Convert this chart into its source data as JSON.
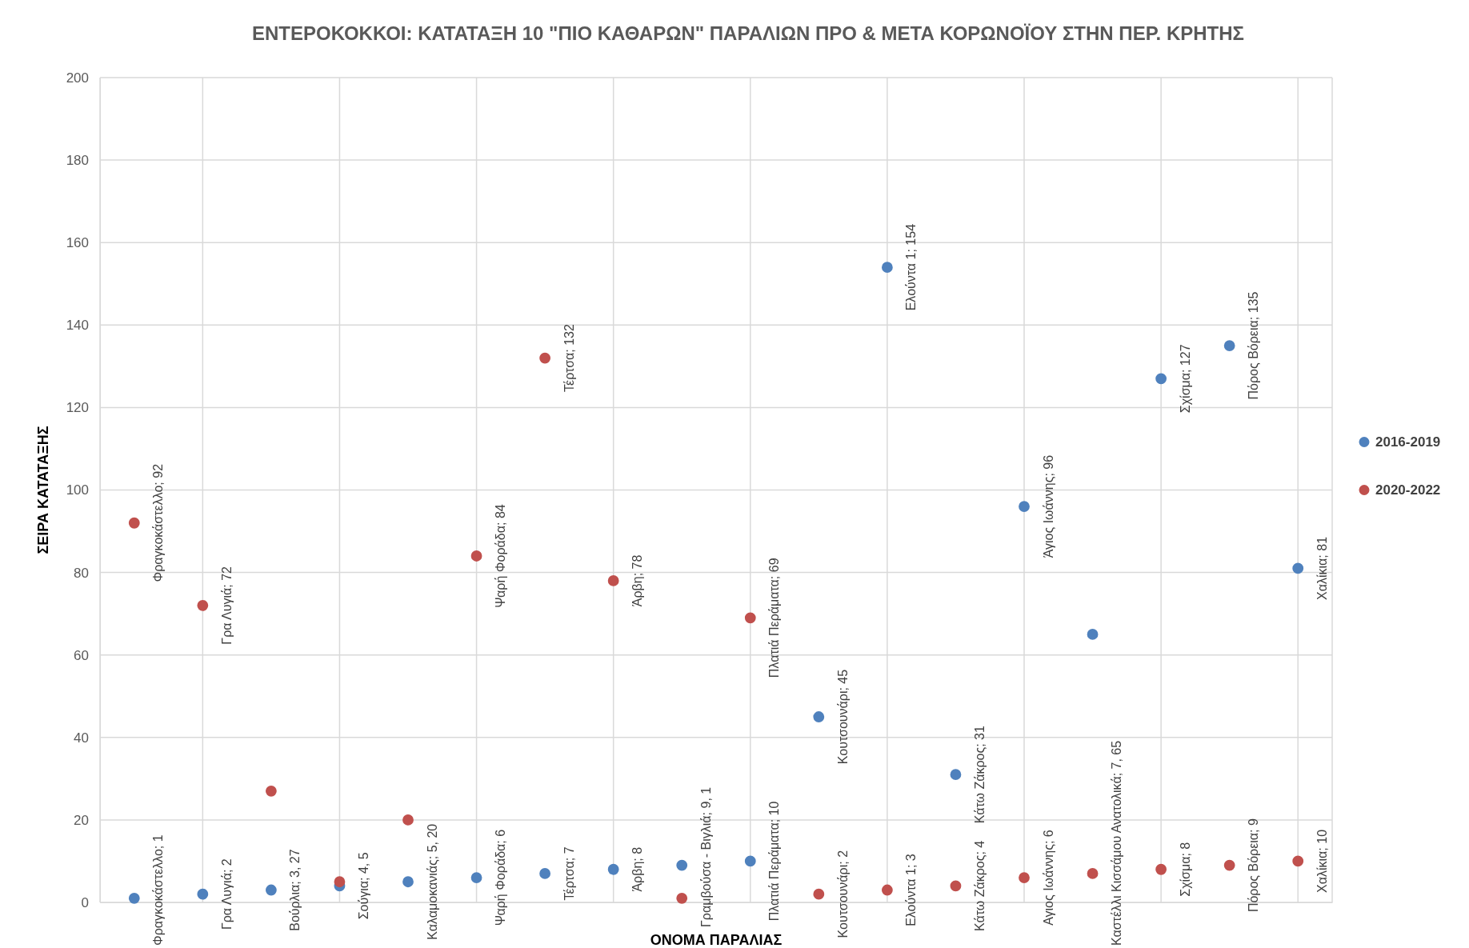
{
  "chart_data": {
    "type": "scatter",
    "title": "ΕΝΤΕΡΟΚΟΚΚΟΙ: ΚΑΤΑΤΑΞΗ 10 \"ΠΙΟ ΚΑΘΑΡΩΝ\" ΠΑΡΑΛΙΩΝ ΠΡΟ & ΜΕΤΑ ΚΟΡΩΝΟΪΟΥ ΣΤΗΝ ΠΕΡ. ΚΡΗΤΗΣ",
    "xlabel": "ΟΝΟΜΑ ΠΑΡΑΛΙΑΣ",
    "ylabel": "ΣΕΙΡΑ ΚΑΤΑΤΑΞΗΣ",
    "categories": [
      null,
      null,
      null,
      null,
      null,
      null,
      null,
      null,
      null,
      null,
      null,
      null,
      null,
      null,
      null,
      null,
      null,
      null
    ],
    "ylim": [
      0,
      200
    ],
    "yticks": [
      0,
      20,
      40,
      60,
      80,
      100,
      120,
      140,
      160,
      180,
      200
    ],
    "grid": true,
    "legend": "right",
    "marker": "circle",
    "series": [
      {
        "name": "2016-2019",
        "color": "#4f81bd",
        "values": [
          1,
          2,
          3,
          4,
          5,
          6,
          7,
          8,
          9,
          10,
          45,
          154,
          31,
          96,
          65,
          127,
          135,
          81
        ],
        "value_labels": [
          "Φραγκοκάστελλο; 1",
          "Γρα Λυγιά; 2",
          "Βούρλια; 3, 27",
          "Σούγια; 4, 5",
          "Καλαμοκανιάς; 5, 20",
          "Ψαρή Φοράδα; 6",
          "Τέρτσα; 7",
          "Άρβη; 8",
          "Γραμβούσα - Βιγλιά; 9, 1",
          "Πλατιά Περάματα; 10",
          "Κουτσουνάρι; 45",
          "Ελούντα 1; 154",
          "Κάτω Ζάκρος; 31",
          "Άγιος Ιωάννης; 96",
          null,
          "Σχίσμα; 127",
          "Πόρος Βόρεια; 135",
          "Χαλίκια; 81"
        ]
      },
      {
        "name": "2020-2022",
        "color": "#c0504d",
        "values": [
          92,
          72,
          27,
          5,
          20,
          84,
          132,
          78,
          1,
          69,
          2,
          3,
          4,
          6,
          7,
          8,
          9,
          10
        ],
        "value_labels": [
          "Φραγκοκάστελλο; 92",
          "Γρα Λυγιά; 72",
          null,
          null,
          null,
          "Ψαρή Φοράδα; 84",
          "Τέρτσα; 132",
          "Άρβη; 78",
          null,
          "Πλατιά Περάματα; 69",
          "Κουτσουνάρι; 2",
          "Ελούντα 1; 3",
          "Κάτω Ζάκρος; 4",
          "Αγιος Ιωάννης; 6",
          "Καστέλλι Κισσάμου Ανατολικά; 7, 65",
          "Σχίσμα; 8",
          "Πόρος Βόρεια; 9",
          "Χαλίκια; 10"
        ]
      }
    ]
  }
}
